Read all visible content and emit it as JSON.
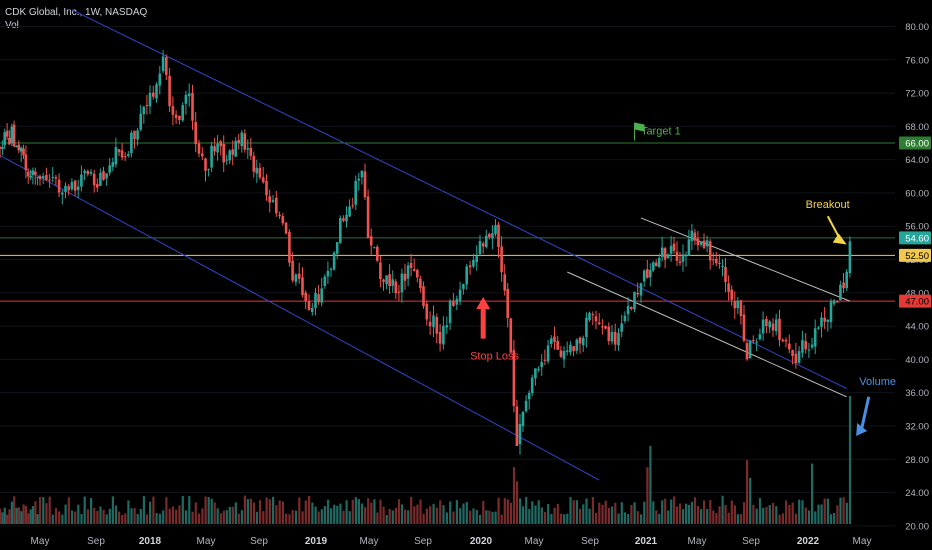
{
  "header": {
    "symbol_line": "CDK Global, Inc., 1W, NASDAQ",
    "indicator": "Vol"
  },
  "colors": {
    "background": "#000000",
    "up": "#26a69a",
    "down": "#ef5350",
    "vol_up": "#1f6b63",
    "vol_down": "#7a2b2b",
    "channel": "#2f47c9",
    "recent_channel": "#bfbfbf",
    "target_line": "#2e7d32",
    "resistance_line": "#f2c94c",
    "support_line": "#e53935",
    "axis_text": "#b2b5be",
    "breakout_label": "#f5d547",
    "stoploss_label": "#ff4040",
    "volume_label": "#4a90e2",
    "target_label": "#4caf50"
  },
  "chart_data": {
    "type": "candlestick",
    "title": "CDK Global, Inc., 1W, NASDAQ",
    "y_ticks": [
      20,
      24,
      28,
      32,
      36,
      40,
      44,
      48,
      52,
      56,
      60,
      64,
      68,
      72,
      76,
      80
    ],
    "ylim": [
      19.5,
      81.5
    ],
    "x_ticks": [
      "May",
      "Sep",
      "2018",
      "May",
      "Sep",
      "2019",
      "May",
      "Sep",
      "2020",
      "May",
      "Sep",
      "2021",
      "May",
      "Sep",
      "2022",
      "May"
    ],
    "x_tick_dates": [
      "2017-05-01",
      "2017-09-01",
      "2018-01-01",
      "2018-05-01",
      "2018-09-01",
      "2019-01-01",
      "2019-05-01",
      "2019-09-01",
      "2020-01-01",
      "2020-05-01",
      "2020-09-01",
      "2021-01-01",
      "2021-05-01",
      "2021-09-01",
      "2022-01-01",
      "2022-05-01"
    ],
    "price_path": [
      [
        "2017-01-02",
        65.5
      ],
      [
        "2017-02-06",
        67.2
      ],
      [
        "2017-03-13",
        64.0
      ],
      [
        "2017-04-17",
        61.0
      ],
      [
        "2017-05-22",
        62.5
      ],
      [
        "2017-06-26",
        59.8
      ],
      [
        "2017-07-31",
        62.5
      ],
      [
        "2017-09-04",
        61.0
      ],
      [
        "2017-10-09",
        64.5
      ],
      [
        "2017-11-13",
        65.0
      ],
      [
        "2017-12-04",
        68.5
      ],
      [
        "2018-01-08",
        71.5
      ],
      [
        "2018-01-29",
        76.0
      ],
      [
        "2018-02-12",
        71.5
      ],
      [
        "2018-03-05",
        68.5
      ],
      [
        "2018-03-26",
        72.5
      ],
      [
        "2018-04-09",
        65.0
      ],
      [
        "2018-04-30",
        63.0
      ],
      [
        "2018-05-21",
        65.5
      ],
      [
        "2018-06-25",
        64.0
      ],
      [
        "2018-07-23",
        67.5
      ],
      [
        "2018-08-20",
        63.0
      ],
      [
        "2018-09-10",
        60.5
      ],
      [
        "2018-10-08",
        58.5
      ],
      [
        "2018-10-29",
        55.0
      ],
      [
        "2018-11-12",
        50.0
      ],
      [
        "2018-12-10",
        48.0
      ],
      [
        "2018-12-24",
        46.0
      ],
      [
        "2019-01-21",
        49.5
      ],
      [
        "2019-02-04",
        52.0
      ],
      [
        "2019-02-25",
        56.5
      ],
      [
        "2019-03-18",
        58.5
      ],
      [
        "2019-04-15",
        62.5
      ],
      [
        "2019-04-29",
        55.0
      ],
      [
        "2019-05-20",
        51.0
      ],
      [
        "2019-06-17",
        48.5
      ],
      [
        "2019-07-15",
        49.5
      ],
      [
        "2019-08-12",
        51.0
      ],
      [
        "2019-08-26",
        48.0
      ],
      [
        "2019-09-16",
        45.0
      ],
      [
        "2019-10-07",
        43.0
      ],
      [
        "2019-10-28",
        46.0
      ],
      [
        "2019-11-25",
        49.5
      ],
      [
        "2019-12-23",
        53.0
      ],
      [
        "2020-01-13",
        55.5
      ],
      [
        "2020-02-03",
        55.0
      ],
      [
        "2020-02-17",
        51.5
      ],
      [
        "2020-03-02",
        45.5
      ],
      [
        "2020-03-16",
        34.0
      ],
      [
        "2020-03-23",
        30.5
      ],
      [
        "2020-04-13",
        34.5
      ],
      [
        "2020-05-11",
        39.0
      ],
      [
        "2020-06-08",
        43.0
      ],
      [
        "2020-07-06",
        40.0
      ],
      [
        "2020-08-03",
        41.5
      ],
      [
        "2020-08-31",
        46.0
      ],
      [
        "2020-09-28",
        43.5
      ],
      [
        "2020-10-26",
        42.5
      ],
      [
        "2020-11-16",
        45.5
      ],
      [
        "2020-12-14",
        47.5
      ],
      [
        "2021-01-04",
        51.0
      ],
      [
        "2021-02-01",
        52.5
      ],
      [
        "2021-03-01",
        53.5
      ],
      [
        "2021-03-29",
        51.5
      ],
      [
        "2021-04-19",
        54.5
      ],
      [
        "2021-05-17",
        53.5
      ],
      [
        "2021-06-14",
        52.5
      ],
      [
        "2021-07-12",
        49.0
      ],
      [
        "2021-08-02",
        46.5
      ],
      [
        "2021-08-23",
        41.0
      ],
      [
        "2021-09-13",
        42.5
      ],
      [
        "2021-10-11",
        45.0
      ],
      [
        "2021-11-08",
        43.0
      ],
      [
        "2021-12-06",
        40.5
      ],
      [
        "2021-12-27",
        41.5
      ],
      [
        "2022-01-24",
        43.0
      ],
      [
        "2022-02-14",
        45.5
      ],
      [
        "2022-03-07",
        47.5
      ],
      [
        "2022-03-21",
        48.5
      ],
      [
        "2022-04-04",
        54.6
      ]
    ],
    "volume": {
      "scale_max": 36,
      "spikes": [
        [
          "2020-03-16",
          16
        ],
        [
          "2020-03-23",
          12
        ],
        [
          "2021-01-04",
          16
        ],
        [
          "2021-01-11",
          22
        ],
        [
          "2021-08-23",
          18
        ],
        [
          "2021-08-30",
          13
        ],
        [
          "2022-01-10",
          17
        ],
        [
          "2022-04-04",
          36
        ]
      ]
    },
    "horizontal_lines": [
      {
        "name": "target-1",
        "value": 66.0,
        "label": "66.00"
      },
      {
        "name": "breakout-level",
        "value": 54.6,
        "label": "54.60"
      },
      {
        "name": "resistance",
        "value": 52.5,
        "label": "52.50"
      },
      {
        "name": "stop-loss",
        "value": 47.0,
        "label": "47.00"
      }
    ],
    "channels": [
      {
        "name": "long-channel-upper",
        "from": [
          "2017-07-10",
          82.0
        ],
        "to": [
          "2022-03-28",
          36.5
        ]
      },
      {
        "name": "long-channel-lower",
        "from": [
          "2017-01-02",
          64.5
        ],
        "to": [
          "2020-09-21",
          25.5
        ]
      },
      {
        "name": "recent-channel-upper",
        "from": [
          "2020-12-21",
          57.0
        ],
        "to": [
          "2022-04-04",
          47.0
        ]
      },
      {
        "name": "recent-channel-lower",
        "from": [
          "2020-07-13",
          50.5
        ],
        "to": [
          "2022-03-28",
          35.5
        ]
      }
    ],
    "annotations": [
      {
        "name": "target-1-label",
        "text": "Target 1",
        "at": [
          "2020-12-21",
          67.0
        ]
      },
      {
        "name": "breakout-label",
        "text": "Breakout",
        "at": [
          "2021-12-27",
          58.2
        ]
      },
      {
        "name": "stop-loss-label",
        "text": "Stop Loss",
        "at": [
          "2019-12-09",
          40.0
        ]
      },
      {
        "name": "volume-label",
        "text": "Volume",
        "at": [
          "2022-04-25",
          36.9
        ]
      }
    ]
  }
}
